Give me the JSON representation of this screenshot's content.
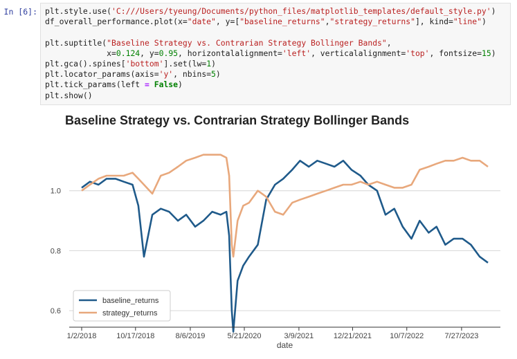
{
  "cell": {
    "prompt": "In [6]:",
    "code_lines": [
      [
        {
          "t": "plt.style.use(",
          "c": "n"
        },
        {
          "t": "'C:///Users/tyeung/Documents/python_files/matplotlib_templates/default_style.py'",
          "c": "s"
        },
        {
          "t": ")",
          "c": "n"
        }
      ],
      [
        {
          "t": "df_overall_performance.plot(x=",
          "c": "n"
        },
        {
          "t": "\"date\"",
          "c": "s"
        },
        {
          "t": ", y=[",
          "c": "n"
        },
        {
          "t": "\"baseline_returns\"",
          "c": "s"
        },
        {
          "t": ",",
          "c": "n"
        },
        {
          "t": "\"strategy_returns\"",
          "c": "s"
        },
        {
          "t": "], kind=",
          "c": "n"
        },
        {
          "t": "\"line\"",
          "c": "s"
        },
        {
          "t": ")",
          "c": "n"
        }
      ],
      [],
      [
        {
          "t": "plt.suptitle(",
          "c": "n"
        },
        {
          "t": "\"Baseline Strategy vs. Contrarian Strategy Bollinger Bands\"",
          "c": "s"
        },
        {
          "t": ",",
          "c": "n"
        }
      ],
      [
        {
          "t": "             x=",
          "c": "n"
        },
        {
          "t": "0.124",
          "c": "num"
        },
        {
          "t": ", y=",
          "c": "n"
        },
        {
          "t": "0.95",
          "c": "num"
        },
        {
          "t": ", horizontalalignment=",
          "c": "n"
        },
        {
          "t": "'left'",
          "c": "s"
        },
        {
          "t": ", verticalalignment=",
          "c": "n"
        },
        {
          "t": "'top'",
          "c": "s"
        },
        {
          "t": ", fontsize=",
          "c": "n"
        },
        {
          "t": "15",
          "c": "num"
        },
        {
          "t": ")",
          "c": "n"
        }
      ],
      [
        {
          "t": "plt.gca().spines[",
          "c": "n"
        },
        {
          "t": "'bottom'",
          "c": "s"
        },
        {
          "t": "].set(lw=",
          "c": "n"
        },
        {
          "t": "1",
          "c": "num"
        },
        {
          "t": ")",
          "c": "n"
        }
      ],
      [
        {
          "t": "plt.locator_params(axis=",
          "c": "n"
        },
        {
          "t": "'y'",
          "c": "s"
        },
        {
          "t": ", nbins=",
          "c": "n"
        },
        {
          "t": "5",
          "c": "num"
        },
        {
          "t": ")",
          "c": "n"
        }
      ],
      [
        {
          "t": "plt.tick_params(left ",
          "c": "n"
        },
        {
          "t": "=",
          "c": "o"
        },
        {
          "t": " ",
          "c": "n"
        },
        {
          "t": "False",
          "c": "k"
        },
        {
          "t": ")",
          "c": "n"
        }
      ],
      [
        {
          "t": "plt.show()",
          "c": "n"
        }
      ]
    ]
  },
  "chart_data": {
    "type": "line",
    "title": "Baseline Strategy vs. Contrarian Strategy Bollinger Bands",
    "xlabel": "date",
    "ylabel": "",
    "x_tick_labels": [
      "1/2/2018",
      "10/17/2018",
      "8/6/2019",
      "5/21/2020",
      "3/9/2021",
      "12/21/2021",
      "10/7/2022",
      "7/27/2023"
    ],
    "y_ticks": [
      0.6,
      0.8,
      1.0
    ],
    "y_tick_labels": [
      "0.6",
      "0.8",
      "1.0"
    ],
    "ylim": [
      0.545,
      1.14
    ],
    "grid": "horizontal",
    "legend_position": "lower-left",
    "x_dates": [
      "1/2/2018",
      "2/15/2018",
      "4/2/2018",
      "5/15/2018",
      "7/2/2018",
      "8/15/2018",
      "10/1/2018",
      "11/1/2018",
      "12/1/2018",
      "1/15/2019",
      "3/1/2019",
      "4/15/2019",
      "6/1/2019",
      "7/15/2019",
      "9/1/2019",
      "10/15/2019",
      "12/1/2019",
      "1/15/2020",
      "2/15/2020",
      "3/1/2020",
      "3/15/2020",
      "3/23/2020",
      "4/15/2020",
      "5/15/2020",
      "6/15/2020",
      "8/1/2020",
      "9/15/2020",
      "11/1/2020",
      "12/15/2020",
      "2/1/2021",
      "3/15/2021",
      "5/1/2021",
      "6/15/2021",
      "8/1/2021",
      "9/15/2021",
      "11/1/2021",
      "12/15/2021",
      "2/1/2022",
      "3/15/2022",
      "5/1/2022",
      "6/15/2022",
      "8/1/2022",
      "9/15/2022",
      "11/1/2022",
      "12/15/2022",
      "2/1/2023",
      "3/15/2023",
      "5/1/2023",
      "6/15/2023",
      "8/1/2023",
      "9/15/2023",
      "11/1/2023",
      "12/15/2023"
    ],
    "series": [
      {
        "name": "baseline_returns",
        "color": "#1f5a8a",
        "values": [
          1.01,
          1.03,
          1.02,
          1.04,
          1.04,
          1.03,
          1.02,
          0.95,
          0.78,
          0.92,
          0.94,
          0.93,
          0.9,
          0.92,
          0.88,
          0.9,
          0.93,
          0.92,
          0.93,
          0.85,
          0.6,
          0.53,
          0.7,
          0.75,
          0.78,
          0.82,
          0.97,
          1.02,
          1.04,
          1.07,
          1.1,
          1.08,
          1.1,
          1.09,
          1.08,
          1.1,
          1.07,
          1.05,
          1.02,
          1.0,
          0.92,
          0.94,
          0.88,
          0.84,
          0.9,
          0.86,
          0.88,
          0.82,
          0.84,
          0.84,
          0.82,
          0.78,
          0.76
        ]
      },
      {
        "name": "strategy_returns",
        "color": "#e8a87c",
        "values": [
          1.0,
          1.02,
          1.04,
          1.05,
          1.05,
          1.05,
          1.06,
          1.04,
          1.02,
          0.99,
          1.05,
          1.06,
          1.08,
          1.1,
          1.11,
          1.12,
          1.12,
          1.12,
          1.11,
          1.05,
          0.82,
          0.78,
          0.9,
          0.95,
          0.96,
          1.0,
          0.98,
          0.93,
          0.92,
          0.96,
          0.97,
          0.98,
          0.99,
          1.0,
          1.01,
          1.02,
          1.02,
          1.03,
          1.02,
          1.03,
          1.02,
          1.01,
          1.01,
          1.02,
          1.07,
          1.08,
          1.09,
          1.1,
          1.1,
          1.11,
          1.1,
          1.1,
          1.08
        ]
      }
    ]
  }
}
